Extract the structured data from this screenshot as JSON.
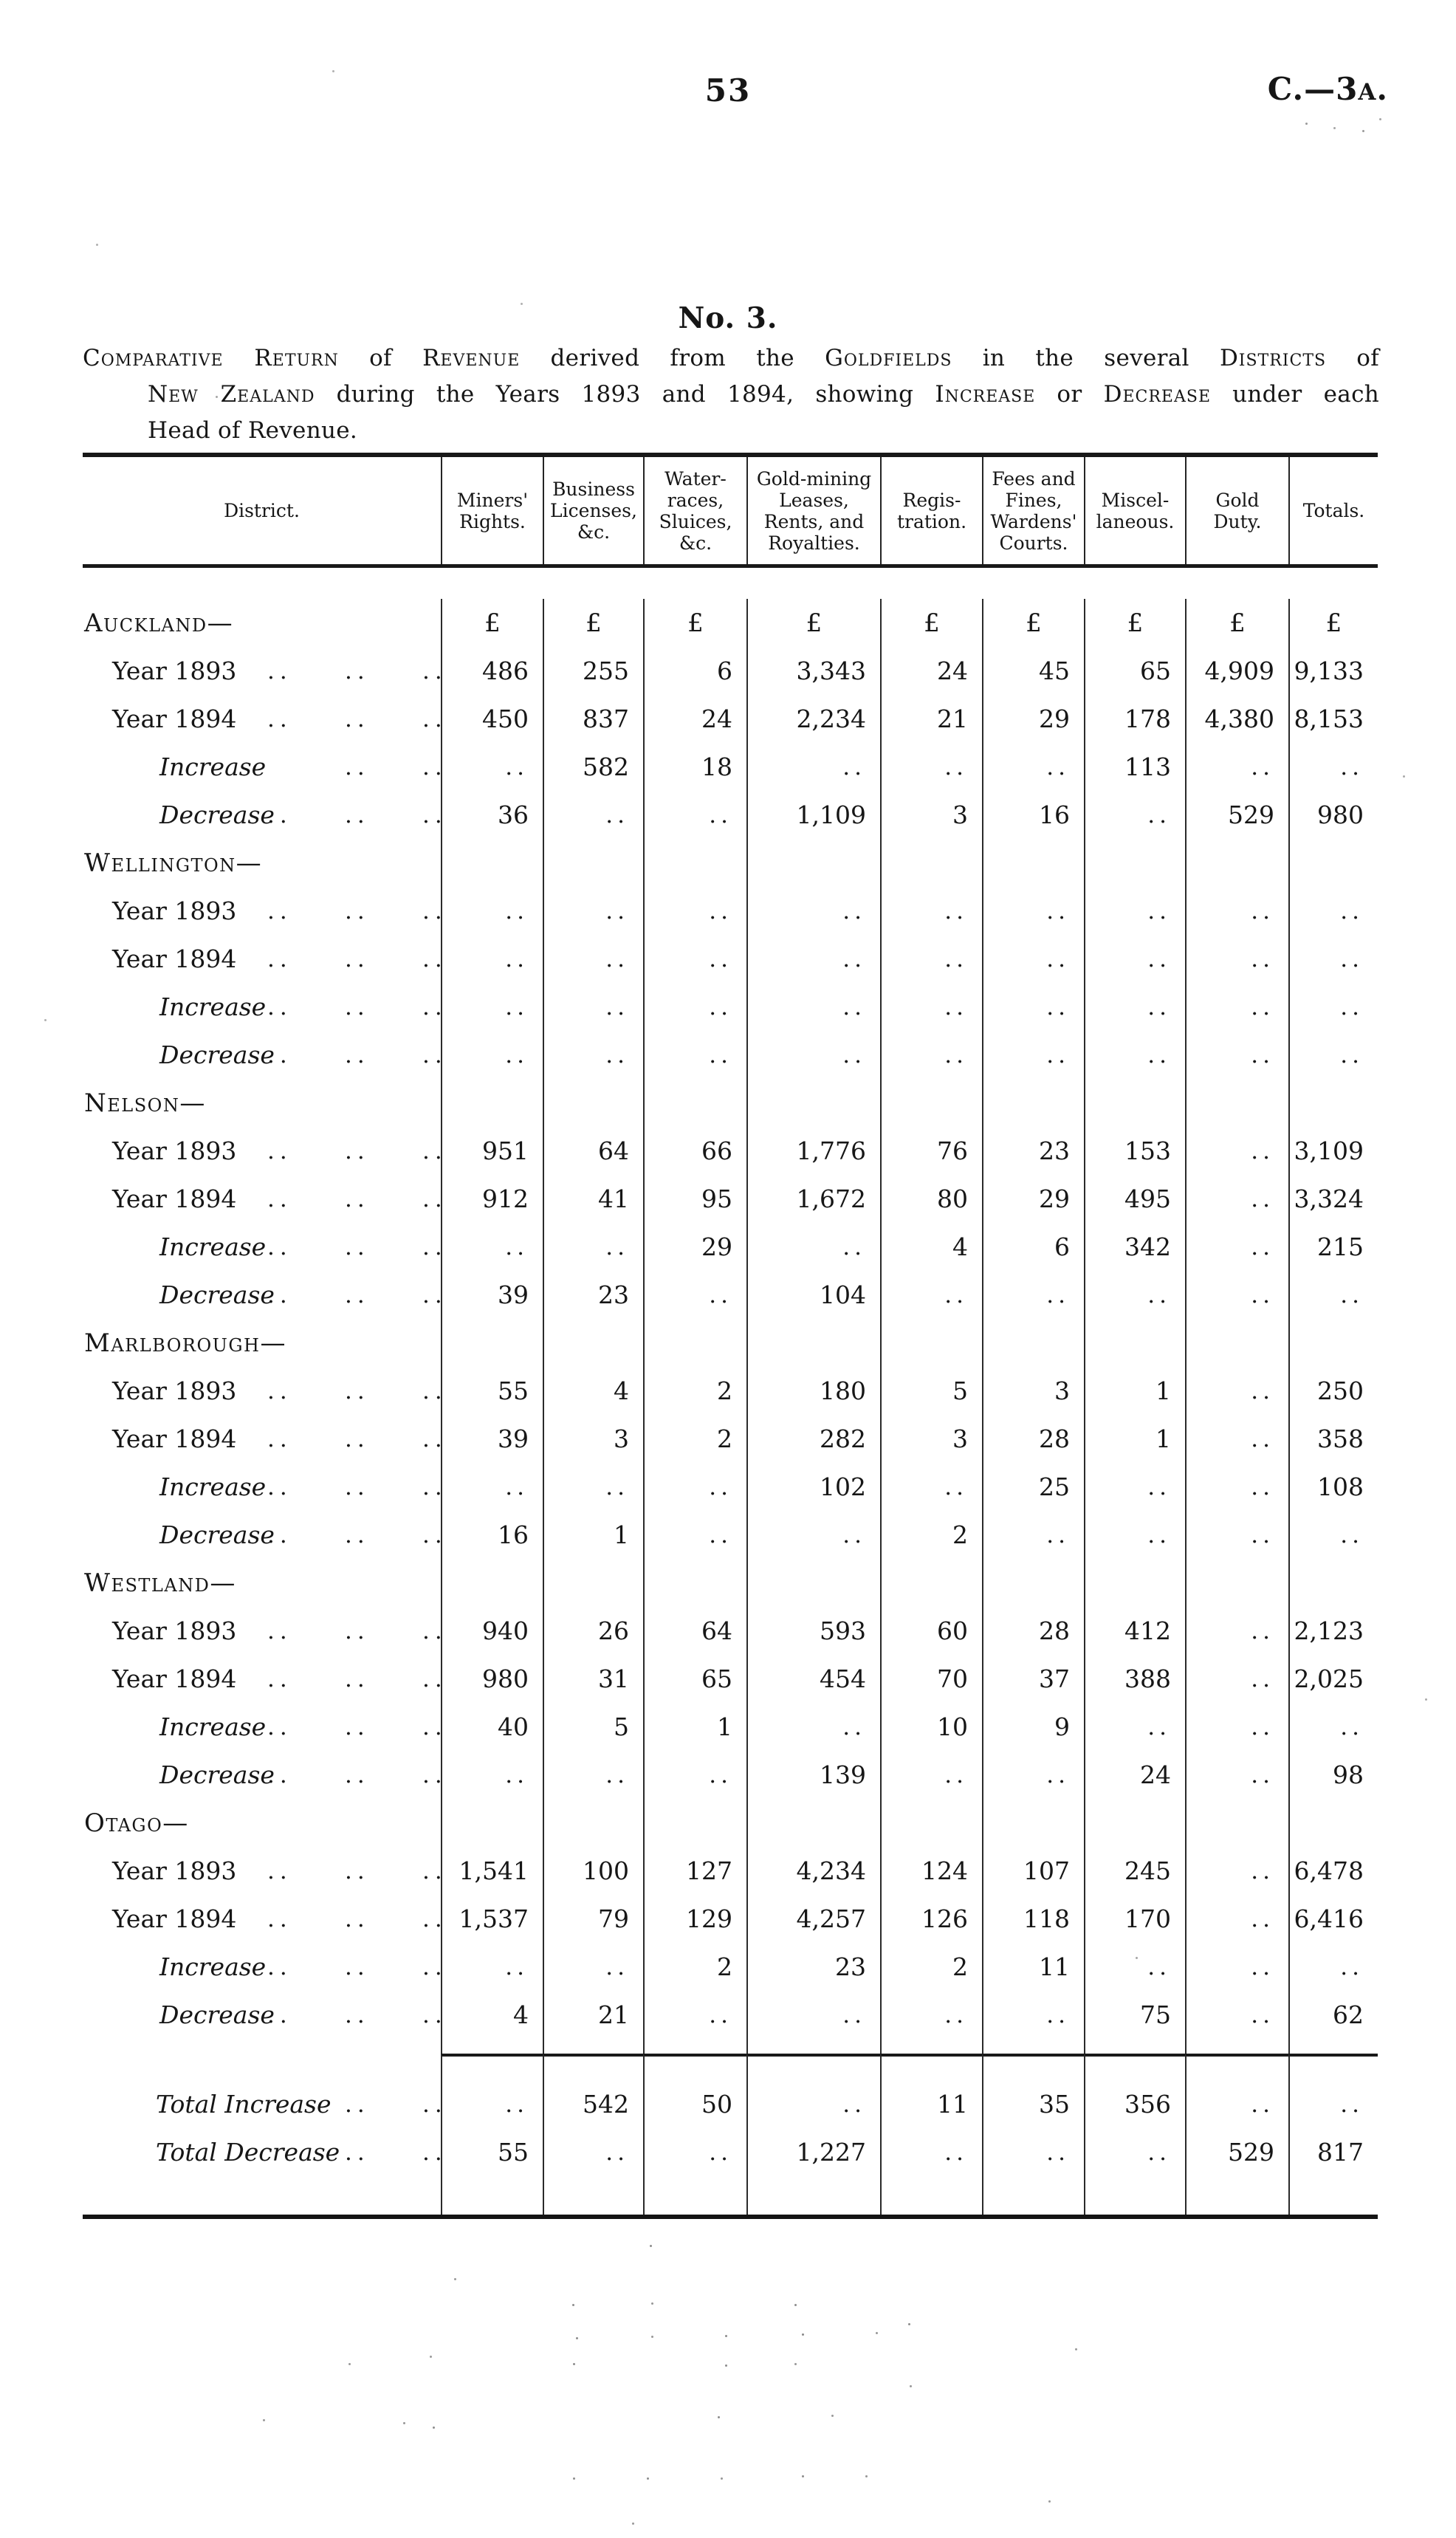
{
  "page": {
    "number": "53",
    "reference": {
      "prefix": "C.—3",
      "small": "A",
      "suffix": "."
    },
    "title": "No. 3.",
    "caption_lines": [
      [
        {
          "t": "Comparative Return",
          "sc": true
        },
        {
          "t": " of ",
          "sc": false
        },
        {
          "t": "Revenue",
          "sc": true
        },
        {
          "t": " derived from the ",
          "sc": false
        },
        {
          "t": "Goldfields",
          "sc": true
        },
        {
          "t": " in the several ",
          "sc": false
        },
        {
          "t": "Districts",
          "sc": true
        },
        {
          "t": " of",
          "sc": false
        }
      ],
      [
        {
          "t": "New Zealand",
          "sc": true
        },
        {
          "t": " during the Years 1893 and 1894, showing ",
          "sc": false
        },
        {
          "t": "Increase",
          "sc": true
        },
        {
          "t": " or ",
          "sc": false
        },
        {
          "t": "Decrease",
          "sc": true
        },
        {
          "t": " under each",
          "sc": false
        }
      ],
      [
        {
          "t": "Head of Revenue.",
          "sc": false
        }
      ]
    ]
  },
  "table": {
    "currency_symbol": "£",
    "leader_dots": "..",
    "columns": [
      "District.",
      "Miners'\nRights.",
      "Business\nLicenses,\n&c.",
      "Water-\nraces,\nSluices,\n&c.",
      "Gold-mining\nLeases,\nRents, and\nRoyalties.",
      "Regis-\ntration.",
      "Fees and\nFines,\nWardens'\nCourts.",
      "Miscel-\nlaneous.",
      "Gold\nDuty.",
      "Totals."
    ],
    "sections": [
      {
        "name": "Auckland—",
        "currency_row": true,
        "rows": [
          {
            "label": "Year 1893",
            "type": "year",
            "dots": [
              1,
              1,
              1
            ],
            "values": [
              "486",
              "255",
              "6",
              "3,343",
              "24",
              "45",
              "65",
              "4,909",
              "9,133"
            ]
          },
          {
            "label": "Year 1894",
            "type": "year",
            "dots": [
              1,
              1,
              1
            ],
            "values": [
              "450",
              "837",
              "24",
              "2,234",
              "21",
              "29",
              "178",
              "4,380",
              "8,153"
            ]
          },
          {
            "label": "Increase",
            "type": "change",
            "dots": [
              0,
              1,
              1
            ],
            "values": [
              "..",
              "582",
              "18",
              "..",
              "..",
              "..",
              "113",
              "..",
              ".."
            ]
          },
          {
            "label": "Decrease",
            "type": "change",
            "dots": [
              1,
              1,
              1
            ],
            "values": [
              "36",
              "..",
              "..",
              "1,109",
              "3",
              "16",
              "..",
              "529",
              "980"
            ]
          }
        ]
      },
      {
        "name": "Wellington—",
        "currency_row": false,
        "rows": [
          {
            "label": "Year 1893",
            "type": "year",
            "dots": [
              1,
              1,
              1
            ],
            "values": [
              "..",
              "..",
              "..",
              "..",
              "..",
              "..",
              "..",
              "..",
              ".."
            ]
          },
          {
            "label": "Year 1894",
            "type": "year",
            "dots": [
              1,
              1,
              1
            ],
            "values": [
              "..",
              "..",
              "..",
              "..",
              "..",
              "..",
              "..",
              "..",
              ".."
            ]
          },
          {
            "label": "Increase",
            "type": "change",
            "dots": [
              1,
              1,
              1
            ],
            "values": [
              "..",
              "..",
              "..",
              "..",
              "..",
              "..",
              "..",
              "..",
              ".."
            ]
          },
          {
            "label": "Decrease",
            "type": "change",
            "dots": [
              1,
              1,
              1
            ],
            "values": [
              "..",
              "..",
              "..",
              "..",
              "..",
              "..",
              "..",
              "..",
              ".."
            ]
          }
        ]
      },
      {
        "name": "Nelson—",
        "currency_row": false,
        "rows": [
          {
            "label": "Year 1893",
            "type": "year",
            "dots": [
              1,
              1,
              1
            ],
            "values": [
              "951",
              "64",
              "66",
              "1,776",
              "76",
              "23",
              "153",
              "..",
              "3,109"
            ]
          },
          {
            "label": "Year 1894",
            "type": "year",
            "dots": [
              1,
              1,
              1
            ],
            "values": [
              "912",
              "41",
              "95",
              "1,672",
              "80",
              "29",
              "495",
              "..",
              "3,324"
            ]
          },
          {
            "label": "Increase",
            "type": "change",
            "dots": [
              1,
              1,
              1
            ],
            "values": [
              "..",
              "..",
              "29",
              "..",
              "4",
              "6",
              "342",
              "..",
              "215"
            ]
          },
          {
            "label": "Decrease",
            "type": "change",
            "dots": [
              1,
              1,
              1
            ],
            "values": [
              "39",
              "23",
              "..",
              "104",
              "..",
              "..",
              "..",
              "..",
              ".."
            ]
          }
        ]
      },
      {
        "name": "Marlborough—",
        "currency_row": false,
        "rows": [
          {
            "label": "Year 1893",
            "type": "year",
            "dots": [
              1,
              1,
              1
            ],
            "values": [
              "55",
              "4",
              "2",
              "180",
              "5",
              "3",
              "1",
              "..",
              "250"
            ]
          },
          {
            "label": "Year 1894",
            "type": "year",
            "dots": [
              1,
              1,
              1
            ],
            "values": [
              "39",
              "3",
              "2",
              "282",
              "3",
              "28",
              "1",
              "..",
              "358"
            ]
          },
          {
            "label": "Increase",
            "type": "change",
            "dots": [
              1,
              1,
              1
            ],
            "values": [
              "..",
              "..",
              "..",
              "102",
              "..",
              "25",
              "..",
              "..",
              "108"
            ]
          },
          {
            "label": "Decrease",
            "type": "change",
            "dots": [
              1,
              1,
              1
            ],
            "values": [
              "16",
              "1",
              "..",
              "..",
              "2",
              "..",
              "..",
              "..",
              ".."
            ]
          }
        ]
      },
      {
        "name": "Westland—",
        "currency_row": false,
        "rows": [
          {
            "label": "Year 1893",
            "type": "year",
            "dots": [
              1,
              1,
              1
            ],
            "values": [
              "940",
              "26",
              "64",
              "593",
              "60",
              "28",
              "412",
              "..",
              "2,123"
            ]
          },
          {
            "label": "Year 1894",
            "type": "year",
            "dots": [
              1,
              1,
              1
            ],
            "values": [
              "980",
              "31",
              "65",
              "454",
              "70",
              "37",
              "388",
              "..",
              "2,025"
            ]
          },
          {
            "label": "Increase",
            "type": "change",
            "dots": [
              1,
              1,
              1
            ],
            "values": [
              "40",
              "5",
              "1",
              "..",
              "10",
              "9",
              "..",
              "..",
              ".."
            ]
          },
          {
            "label": "Decrease",
            "type": "change",
            "dots": [
              1,
              1,
              1
            ],
            "values": [
              "..",
              "..",
              "..",
              "139",
              "..",
              "..",
              "24",
              "..",
              "98"
            ]
          }
        ]
      },
      {
        "name": "Otago—",
        "currency_row": false,
        "rows": [
          {
            "label": "Year 1893",
            "type": "year",
            "dots": [
              1,
              1,
              1
            ],
            "values": [
              "1,541",
              "100",
              "127",
              "4,234",
              "124",
              "107",
              "245",
              "..",
              "6,478"
            ]
          },
          {
            "label": "Year 1894",
            "type": "year",
            "dots": [
              1,
              1,
              1
            ],
            "values": [
              "1,537",
              "79",
              "129",
              "4,257",
              "126",
              "118",
              "170",
              "..",
              "6,416"
            ]
          },
          {
            "label": "Increase",
            "type": "change",
            "dots": [
              1,
              1,
              1
            ],
            "values": [
              "..",
              "..",
              "2",
              "23",
              "2",
              "11",
              "..",
              "..",
              ".."
            ]
          },
          {
            "label": "Decrease",
            "type": "change",
            "dots": [
              1,
              1,
              1
            ],
            "values": [
              "4",
              "21",
              "..",
              "..",
              "..",
              "..",
              "75",
              "..",
              "62"
            ]
          }
        ]
      }
    ],
    "totals": [
      {
        "label": "Total Increase",
        "type": "total",
        "dots": [
          0,
          1,
          1
        ],
        "values": [
          "..",
          "542",
          "50",
          "..",
          "11",
          "35",
          "356",
          "..",
          ".."
        ]
      },
      {
        "label": "Total Decrease",
        "type": "total",
        "dots": [
          0,
          1,
          1
        ],
        "values": [
          "55",
          "..",
          "..",
          "1,227",
          "..",
          "..",
          "..",
          "529",
          "817"
        ]
      }
    ]
  }
}
